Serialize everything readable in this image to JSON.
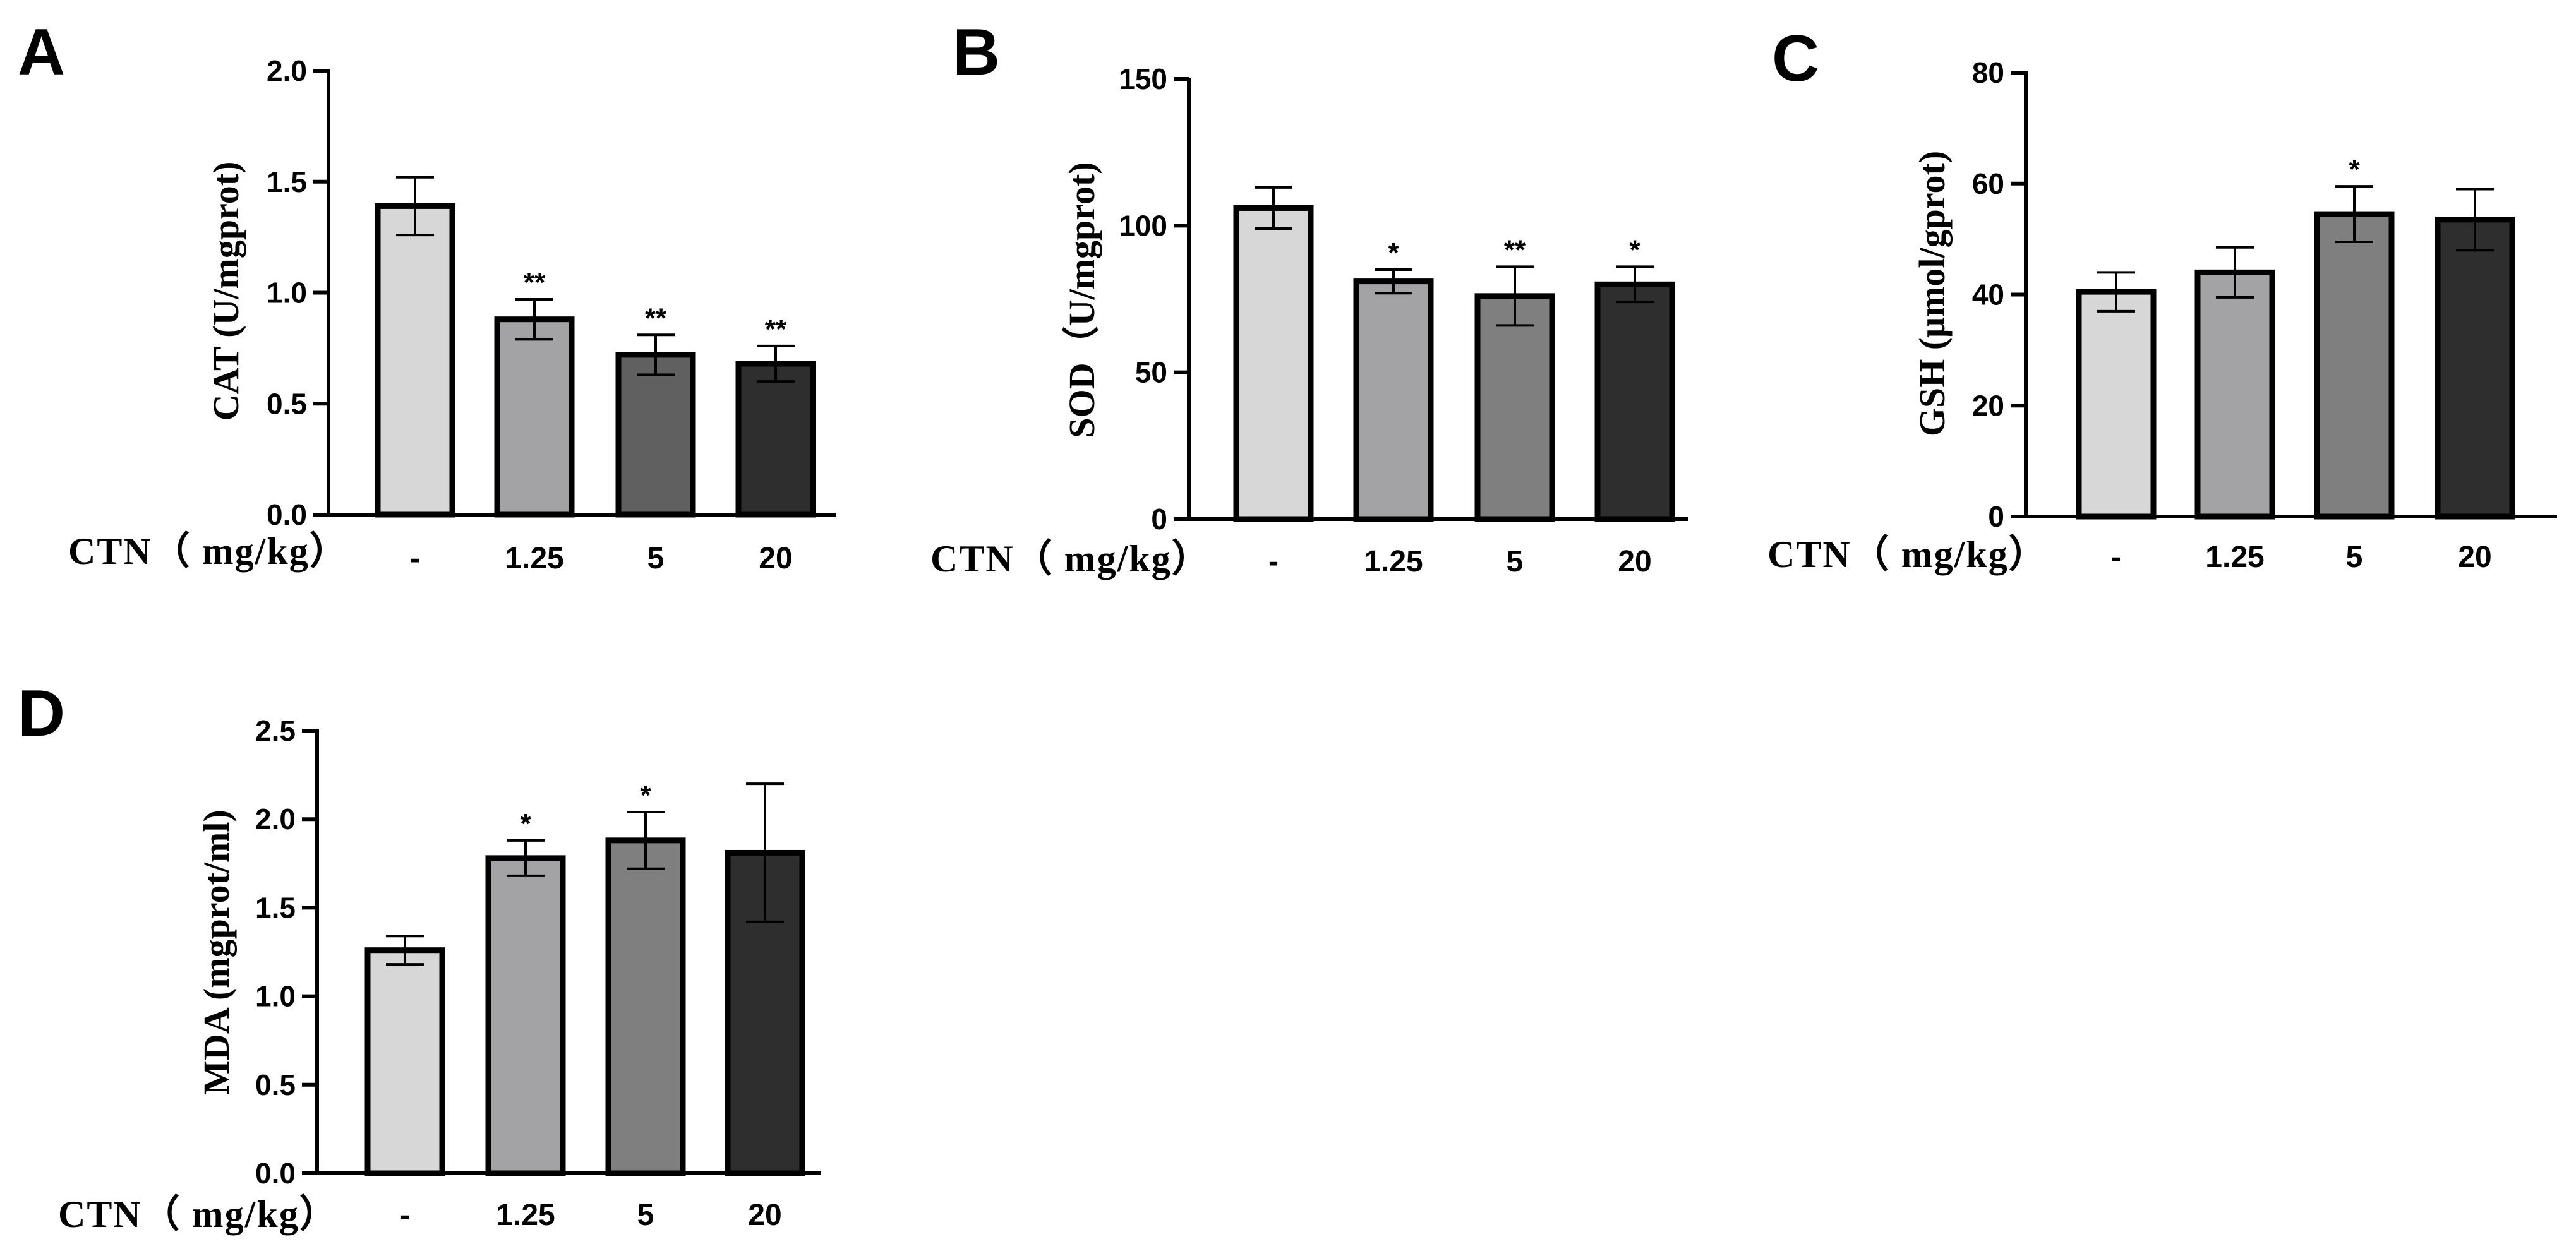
{
  "chart_data": [
    {
      "panel": "A",
      "type": "bar",
      "ylabel": "CAT (U/mgprot)",
      "xtitle": "CTN（ mg/kg）",
      "categories": [
        "-",
        "1.25",
        "5",
        "20"
      ],
      "values": [
        1.39,
        0.88,
        0.72,
        0.68
      ],
      "errors": [
        0.13,
        0.09,
        0.09,
        0.08
      ],
      "significance": [
        "",
        "**",
        "**",
        "**"
      ],
      "ylim": [
        0,
        2.0
      ],
      "yticks": [
        0.0,
        0.5,
        1.0,
        1.5,
        2.0
      ],
      "ytick_labels": [
        "0.0",
        "0.5",
        "1.0",
        "1.5",
        "2.0"
      ],
      "bar_colors": [
        "#d7d7d7",
        "#a3a3a6",
        "#606060",
        "#2e2e2e"
      ]
    },
    {
      "panel": "B",
      "type": "bar",
      "ylabel": "SOD（U/mgprot)",
      "xtitle": "CTN（ mg/kg）",
      "categories": [
        "-",
        "1.25",
        "5",
        "20"
      ],
      "values": [
        106,
        81,
        76,
        80
      ],
      "errors": [
        7,
        4,
        10,
        6
      ],
      "significance": [
        "",
        "*",
        "**",
        "*"
      ],
      "ylim": [
        0,
        150
      ],
      "yticks": [
        0,
        50,
        100,
        150
      ],
      "ytick_labels": [
        "0",
        "50",
        "100",
        "150"
      ],
      "bar_colors": [
        "#d7d7d7",
        "#a3a3a6",
        "#7f7f7f",
        "#2e2e2e"
      ]
    },
    {
      "panel": "C",
      "type": "bar",
      "ylabel": "GSH (μmol/gprot)",
      "xtitle": "CTN（ mg/kg）",
      "categories": [
        "-",
        "1.25",
        "5",
        "20"
      ],
      "values": [
        40.5,
        44,
        54.5,
        53.5
      ],
      "errors": [
        3.5,
        4.5,
        5,
        5.5
      ],
      "significance": [
        "",
        "",
        "*",
        ""
      ],
      "ylim": [
        0,
        80
      ],
      "yticks": [
        0,
        20,
        40,
        60,
        80
      ],
      "ytick_labels": [
        "0",
        "20",
        "40",
        "60",
        "80"
      ],
      "bar_colors": [
        "#d7d7d7",
        "#a3a3a6",
        "#7f7f7f",
        "#2e2e2e"
      ]
    },
    {
      "panel": "D",
      "type": "bar",
      "ylabel": "MDA (mgprot/ml)",
      "xtitle": "CTN（ mg/kg）",
      "categories": [
        "-",
        "1.25",
        "5",
        "20"
      ],
      "values": [
        1.26,
        1.78,
        1.88,
        1.81
      ],
      "errors": [
        0.08,
        0.1,
        0.16,
        0.39
      ],
      "significance": [
        "",
        "*",
        "*",
        ""
      ],
      "ylim": [
        0,
        2.5
      ],
      "yticks": [
        0.0,
        0.5,
        1.0,
        1.5,
        2.0,
        2.5
      ],
      "ytick_labels": [
        "0.0",
        "0.5",
        "1.0",
        "1.5",
        "2.0",
        "2.5"
      ],
      "bar_colors": [
        "#d7d7d7",
        "#a3a3a6",
        "#7f7f7f",
        "#2e2e2e"
      ]
    }
  ]
}
